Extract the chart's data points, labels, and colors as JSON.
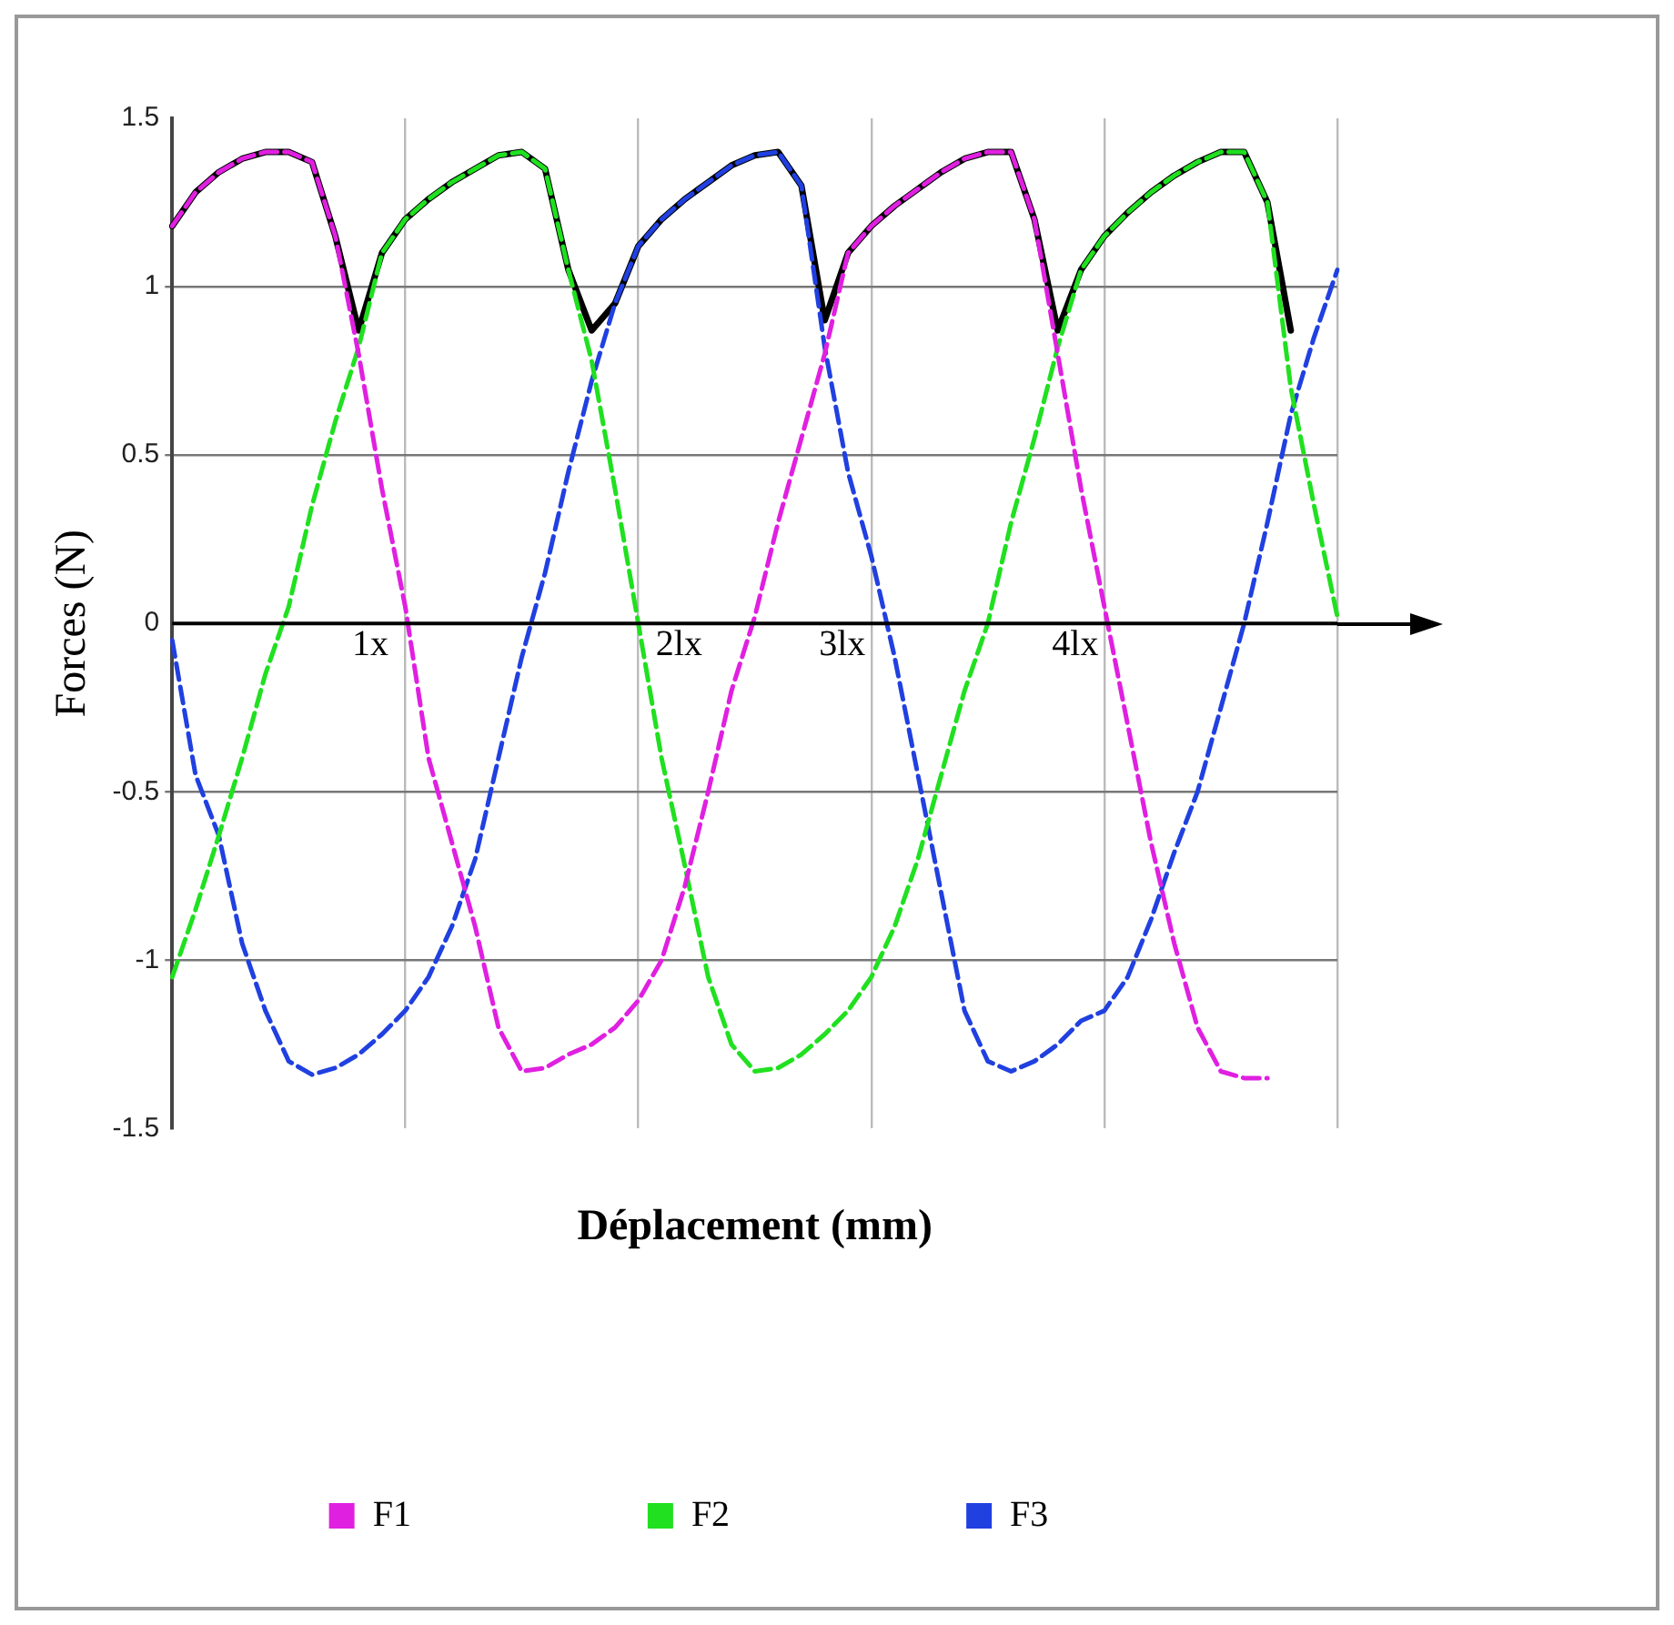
{
  "chart_data": {
    "type": "line",
    "xlabel": "Déplacement (mm)",
    "ylabel": "Forces (N)",
    "categories": [
      null,
      null,
      null,
      null,
      null,
      null,
      null,
      null,
      null,
      null,
      null,
      null,
      null,
      null,
      null,
      null,
      null,
      null,
      null,
      null,
      null,
      null,
      null,
      null,
      null,
      null,
      null,
      null,
      null,
      null,
      null,
      null,
      null,
      null,
      null,
      null,
      null,
      null,
      null,
      null,
      null,
      null,
      null,
      null,
      null,
      null,
      null,
      null,
      null,
      null,
      null
    ],
    "series": [
      {
        "name": "F1",
        "color": "#e020e0",
        "line_style": "dashed",
        "values": [
          1.18,
          1.28,
          1.34,
          1.38,
          1.4,
          1.4,
          1.37,
          1.15,
          0.8,
          0.4,
          0.05,
          -0.4,
          -0.65,
          -0.9,
          -1.2,
          -1.33,
          -1.32,
          -1.28,
          -1.25,
          -1.2,
          -1.12,
          -1.0,
          -0.78,
          -0.5,
          -0.2,
          0.02,
          0.3,
          0.55,
          0.8,
          1.1,
          1.18,
          1.24,
          1.29,
          1.34,
          1.38,
          1.4,
          1.4,
          1.2,
          0.8,
          0.4,
          0.05,
          -0.3,
          -0.65,
          -0.95,
          -1.2,
          -1.33,
          -1.35,
          -1.35,
          null,
          null,
          null
        ]
      },
      {
        "name": "F2",
        "color": "#20e020",
        "line_style": "dashed",
        "values": [
          -1.05,
          -0.85,
          -0.63,
          -0.4,
          -0.15,
          0.05,
          0.35,
          0.6,
          0.82,
          1.1,
          1.2,
          1.26,
          1.31,
          1.35,
          1.39,
          1.4,
          1.35,
          1.05,
          0.78,
          0.4,
          0.0,
          -0.4,
          -0.72,
          -1.05,
          -1.25,
          -1.33,
          -1.32,
          -1.28,
          -1.22,
          -1.15,
          -1.05,
          -0.9,
          -0.7,
          -0.45,
          -0.2,
          0.0,
          0.3,
          0.55,
          0.82,
          1.05,
          1.15,
          1.22,
          1.28,
          1.33,
          1.37,
          1.4,
          1.4,
          1.25,
          0.7,
          0.35,
          0.02
        ]
      },
      {
        "name": "F3",
        "color": "#2040e0",
        "line_style": "dashed",
        "values": [
          -0.05,
          -0.45,
          -0.63,
          -0.95,
          -1.15,
          -1.3,
          -1.34,
          -1.32,
          -1.28,
          -1.22,
          -1.15,
          -1.05,
          -0.9,
          -0.7,
          -0.4,
          -0.1,
          0.15,
          0.45,
          0.72,
          0.95,
          1.12,
          1.2,
          1.26,
          1.31,
          1.36,
          1.39,
          1.4,
          1.3,
          0.82,
          0.45,
          0.2,
          -0.1,
          -0.45,
          -0.8,
          -1.15,
          -1.3,
          -1.33,
          -1.3,
          -1.25,
          -1.18,
          -1.15,
          -1.05,
          -0.88,
          -0.68,
          -0.5,
          -0.25,
          0.0,
          0.3,
          0.62,
          0.85,
          1.05
        ]
      },
      {
        "color": "#000000",
        "line_style": "solid",
        "values": [
          1.18,
          1.28,
          1.34,
          1.38,
          1.4,
          1.4,
          1.37,
          1.15,
          0.87,
          1.1,
          1.2,
          1.26,
          1.31,
          1.35,
          1.39,
          1.4,
          1.35,
          1.05,
          0.87,
          0.95,
          1.12,
          1.2,
          1.26,
          1.31,
          1.36,
          1.39,
          1.4,
          1.3,
          0.9,
          1.1,
          1.18,
          1.24,
          1.29,
          1.34,
          1.38,
          1.4,
          1.4,
          1.2,
          0.87,
          1.05,
          1.15,
          1.22,
          1.28,
          1.33,
          1.37,
          1.4,
          1.4,
          1.25,
          0.87,
          null,
          null
        ]
      }
    ],
    "ylim": [
      -1.5,
      1.5
    ],
    "yticks": [
      -1.5,
      -1,
      -0.5,
      0,
      0.5,
      1,
      1.5
    ],
    "grid": true,
    "legend": "bottom",
    "marker": "none",
    "annotations": [
      "1x",
      "2lx",
      "3lx",
      "4lx"
    ]
  }
}
